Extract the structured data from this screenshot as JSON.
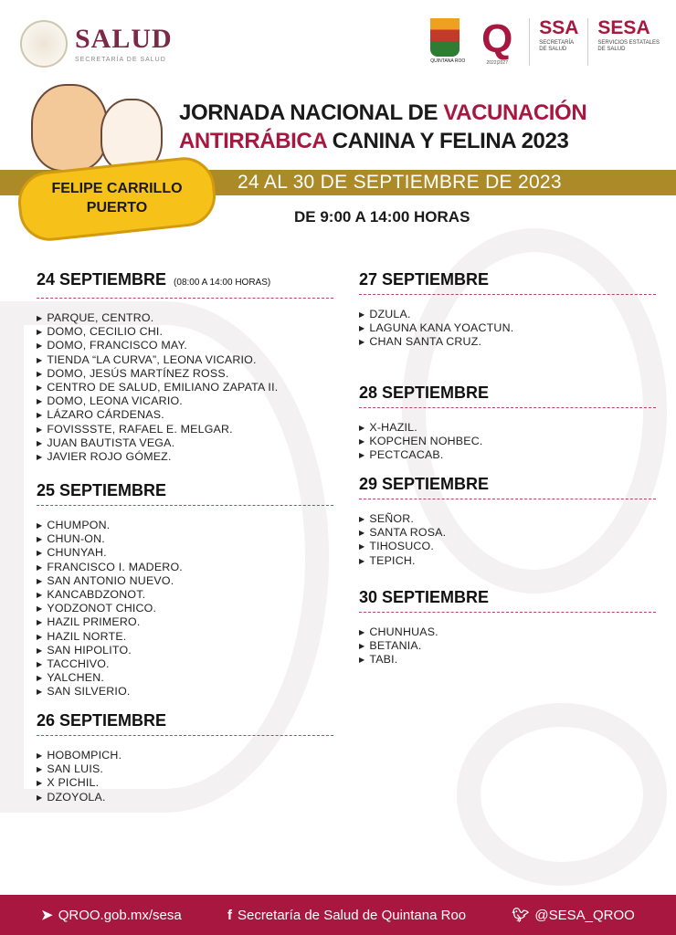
{
  "header": {
    "salud_title": "SALUD",
    "salud_subtitle": "SECRETARÍA DE SALUD",
    "qroo_label": "QUINTANA ROO",
    "q_years": "2022|2027",
    "ssa": {
      "name": "SSA",
      "line1": "SECRETARÍA",
      "line2": "DE SALUD"
    },
    "sesa": {
      "name": "SESA",
      "line1": "SERVICIOS ESTATALES",
      "line2": "DE SALUD"
    }
  },
  "title": {
    "line1_a": "JORNADA NACIONAL DE ",
    "line1_b": "VACUNACIÓN",
    "line2_a": "ANTIRRÁBICA",
    "line2_b": " CANINA Y FELINA 2023"
  },
  "location": {
    "line1": "FELIPE CARRILLO",
    "line2": "PUERTO"
  },
  "dates": "24 AL 30 DE SEPTIEMBRE DE 2023",
  "hours": "DE 9:00 A 14:00 HORAS",
  "sections": [
    {
      "date": "24 SEPTIEMBRE",
      "note": "(08:00 A 14:00 HORAS)",
      "items": [
        "PARQUE, CENTRO.",
        "DOMO, CECILIO CHI.",
        "DOMO, FRANCISCO MAY.",
        "TIENDA “LA CURVA”, LEONA VICARIO.",
        "DOMO, JESÚS MARTÍNEZ ROSS.",
        "CENTRO DE SALUD, EMILIANO ZAPATA II.",
        "DOMO, LEONA VICARIO.",
        "LÁZARO CÁRDENAS.",
        "FOVISSSTE, RAFAEL E. MELGAR.",
        "JUAN BAUTISTA VEGA.",
        "JAVIER ROJO GÓMEZ."
      ]
    },
    {
      "date": "25 SEPTIEMBRE",
      "items": [
        "CHUMPON.",
        "CHUN-ON.",
        "CHUNYAH.",
        "FRANCISCO I. MADERO.",
        "SAN ANTONIO NUEVO.",
        "KANCABDZONOT.",
        "YODZONOT CHICO.",
        "HAZIL PRIMERO.",
        "HAZIL NORTE.",
        "SAN HIPOLITO.",
        "TACCHIVO.",
        "YALCHEN.",
        "SAN SILVERIO."
      ]
    },
    {
      "date": "26 SEPTIEMBRE",
      "items": [
        "HOBOMPICH.",
        "SAN LUIS.",
        "X PICHIL.",
        "DZOYOLA."
      ]
    },
    {
      "date": "27 SEPTIEMBRE",
      "items": [
        "DZULA.",
        "LAGUNA KANA YOACTUN.",
        "CHAN SANTA CRUZ."
      ]
    },
    {
      "date": "28 SEPTIEMBRE",
      "items": [
        "X-HAZIL.",
        "KOPCHEN NOHBEC.",
        "PECTCACAB."
      ]
    },
    {
      "date": "29 SEPTIEMBRE",
      "items": [
        "SEÑOR.",
        "SANTA ROSA.",
        "TIHOSUCO.",
        "TEPICH."
      ]
    },
    {
      "date": "30 SEPTIEMBRE",
      "items": [
        "CHUNHUAS.",
        "BETANIA.",
        "TABI."
      ]
    }
  ],
  "footer": {
    "website": "QROO.gob.mx/sesa",
    "facebook": "Secretaría de Salud de Quintana Roo",
    "twitter": "@SESA_QROO"
  },
  "colors": {
    "accent": "#a8173f",
    "band": "#ad8a28",
    "bone": "#f6c21a"
  }
}
